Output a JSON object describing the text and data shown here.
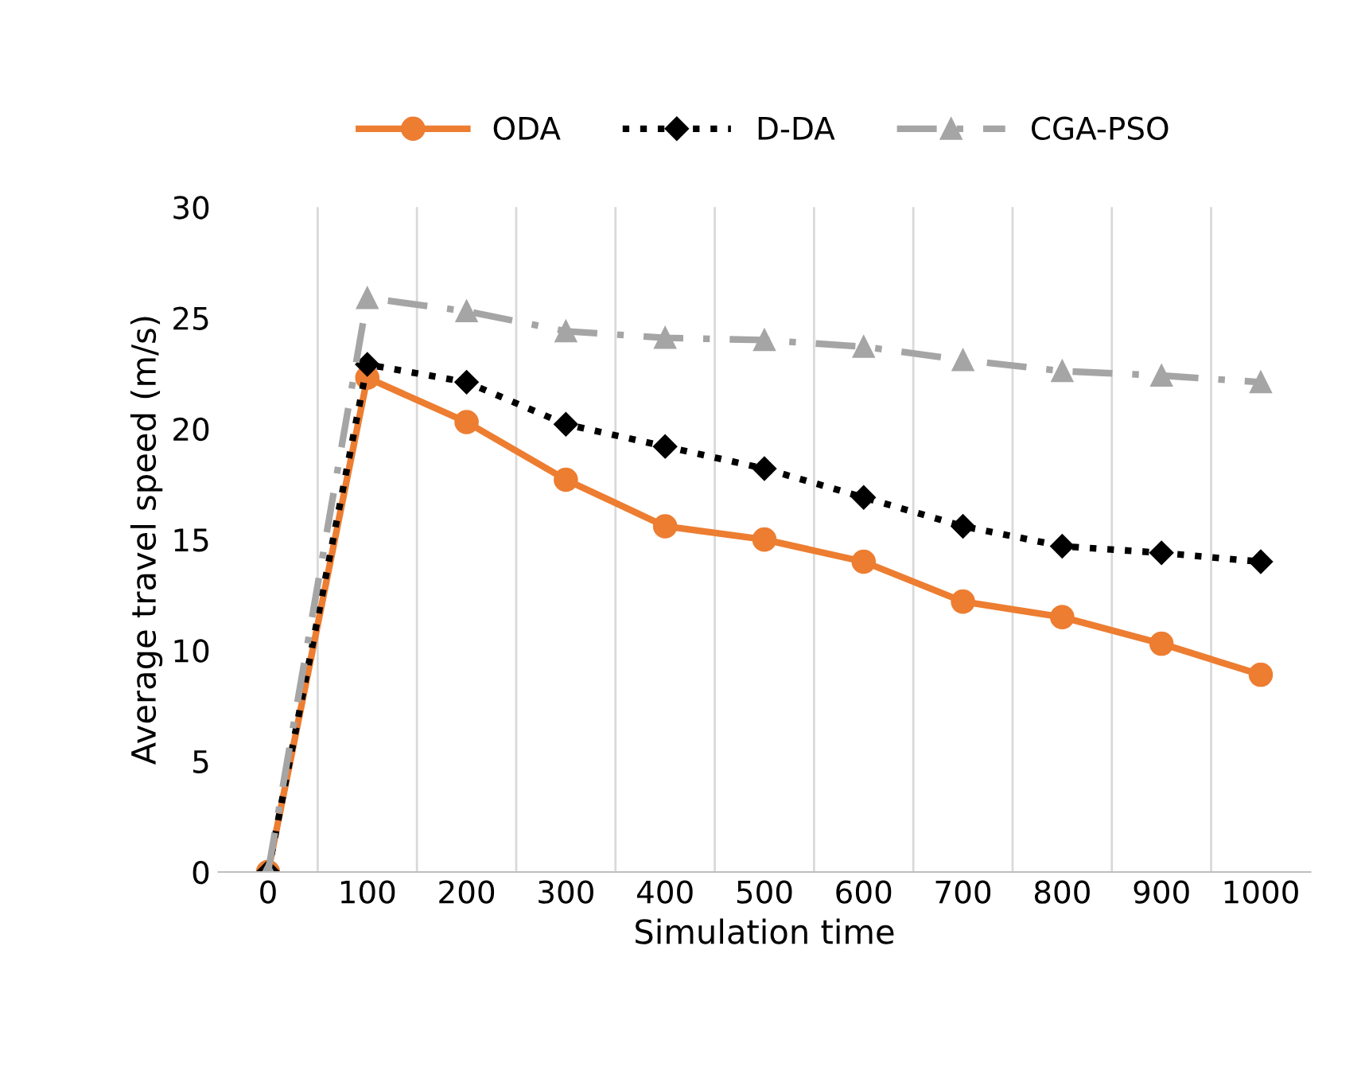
{
  "chart_data": {
    "type": "line",
    "xlabel": "Simulation time",
    "ylabel": "Average travel speed (m/s)",
    "categories": [
      "0",
      "100",
      "200",
      "300",
      "400",
      "500",
      "600",
      "700",
      "800",
      "900",
      "1000"
    ],
    "ylim": [
      0,
      30
    ],
    "yticks": [
      0,
      5,
      10,
      15,
      20,
      25,
      30
    ],
    "grid": "x",
    "legend": "top",
    "series": [
      {
        "name": "ODA",
        "color": "#ed7d31",
        "marker": "circle",
        "line_style": "solid",
        "values": [
          0,
          22.3,
          20.3,
          17.7,
          15.6,
          15.0,
          14.0,
          12.2,
          11.5,
          10.3,
          8.9
        ]
      },
      {
        "name": "D-DA",
        "color": "#000000",
        "marker": "diamond",
        "line_style": "dotted",
        "values": [
          0,
          22.9,
          22.1,
          20.2,
          19.2,
          18.2,
          16.9,
          15.6,
          14.7,
          14.4,
          14.0
        ]
      },
      {
        "name": "CGA-PSO",
        "color": "#a5a5a5",
        "marker": "triangle",
        "line_style": "dashed",
        "values": [
          0,
          25.9,
          25.3,
          24.4,
          24.1,
          24.0,
          23.7,
          23.1,
          22.6,
          22.4,
          22.1
        ]
      }
    ]
  }
}
